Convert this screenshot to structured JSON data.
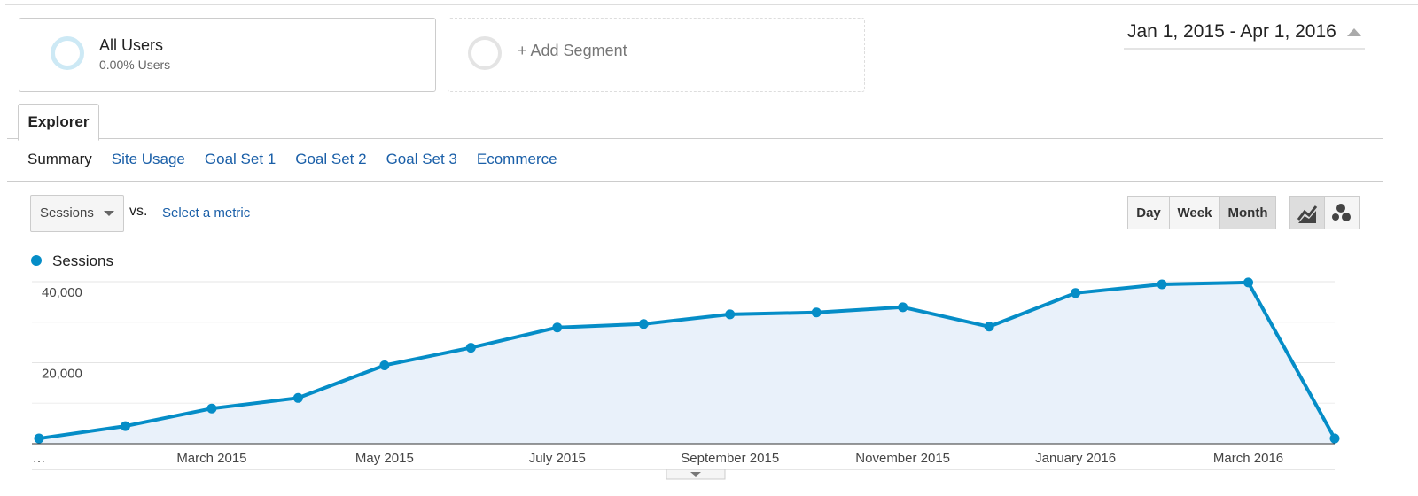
{
  "segments": [
    {
      "name": "All Users",
      "detail": "0.00% Users"
    },
    {
      "name": "+ Add Segment"
    }
  ],
  "date_range": "Jan 1, 2015 - Apr 1, 2016",
  "tab": "Explorer",
  "subtabs": [
    "Summary",
    "Site Usage",
    "Goal Set 1",
    "Goal Set 2",
    "Goal Set 3",
    "Ecommerce"
  ],
  "metric": "Sessions",
  "vs": "vs.",
  "select_metric": "Select a metric",
  "periods": [
    "Day",
    "Week",
    "Month"
  ],
  "chart_data": {
    "type": "line",
    "categories": [
      "…",
      null,
      "March 2015",
      null,
      "May 2015",
      null,
      "July 2015",
      null,
      "September 2015",
      null,
      "November 2015",
      null,
      "January 2016",
      null,
      "March 2016",
      null
    ],
    "series": [
      {
        "name": "Sessions",
        "color": "#058dc7",
        "values": [
          1300,
          4350,
          8700,
          11300,
          19350,
          23700,
          28700,
          29550,
          31950,
          32400,
          33700,
          28900,
          37200,
          39350,
          39800,
          1300
        ]
      }
    ],
    "ylim": [
      0,
      40000
    ],
    "yticks": [
      {
        "value": 20000,
        "label": "20,000"
      },
      {
        "value": 40000,
        "label": "40,000"
      }
    ],
    "minor_yticks": [
      10000,
      30000
    ],
    "grid": true
  }
}
